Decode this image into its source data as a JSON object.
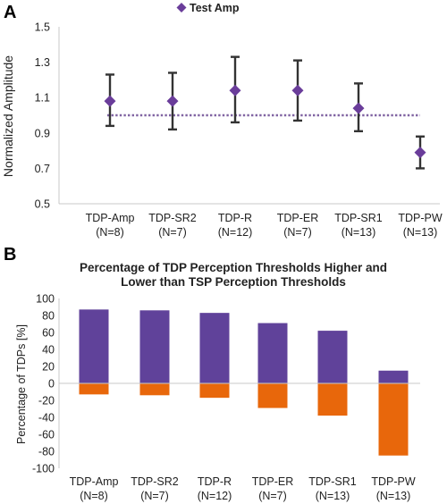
{
  "panels": {
    "a": {
      "letter": "A"
    },
    "b": {
      "letter": "B"
    }
  },
  "chart_data": [
    {
      "type": "scatter",
      "panel": "A",
      "title": "",
      "xlabel": "",
      "ylabel": "Normalized Amplitude",
      "ylim": [
        0.5,
        1.5
      ],
      "yticks": [
        "0.5",
        "0.7",
        "0.9",
        "1.1",
        "1.3",
        "1.5"
      ],
      "grid": false,
      "legend": {
        "entries": [
          "Test Amp"
        ],
        "placement": "top"
      },
      "categories": [
        {
          "name": "TDP-Amp",
          "n": "(N=8)"
        },
        {
          "name": "TDP-SR2",
          "n": "(N=7)"
        },
        {
          "name": "TDP-R",
          "n": "(N=12)"
        },
        {
          "name": "TDP-ER",
          "n": "(N=7)"
        },
        {
          "name": "TDP-SR1",
          "n": "(N=13)"
        },
        {
          "name": "TDP-PW",
          "n": "(N=13)"
        }
      ],
      "series": [
        {
          "name": "Test Amp",
          "color": "#6a3d9a",
          "values": [
            1.08,
            1.08,
            1.14,
            1.14,
            1.04,
            0.79
          ],
          "error_low": [
            0.94,
            0.92,
            0.96,
            0.97,
            0.91,
            0.7
          ],
          "error_high": [
            1.23,
            1.24,
            1.33,
            1.31,
            1.18,
            0.88
          ]
        }
      ],
      "reference_line": {
        "value": 1.0,
        "style": "dotted",
        "color": "#8064a2"
      }
    },
    {
      "type": "bar",
      "panel": "B",
      "title_lines": [
        "Percentage of TDP Perception Thresholds Higher and",
        "Lower than TSP Perception Thresholds"
      ],
      "xlabel": "",
      "ylabel": "Percentage of TDPs [%]",
      "ylim": [
        -100,
        100
      ],
      "yticks": [
        "100",
        "80",
        "60",
        "40",
        "20",
        "0",
        "-20",
        "-40",
        "-60",
        "-80",
        "-100"
      ],
      "grid": false,
      "categories": [
        {
          "name": "TDP-Amp",
          "n": "(N=8)"
        },
        {
          "name": "TDP-SR2",
          "n": "(N=7)"
        },
        {
          "name": "TDP-R",
          "n": "(N=12)"
        },
        {
          "name": "TDP-ER",
          "n": "(N=7)"
        },
        {
          "name": "TDP-SR1",
          "n": "(N=13)"
        },
        {
          "name": "TDP-PW",
          "n": "(N=13)"
        }
      ],
      "series": [
        {
          "color": "#60429a",
          "values": [
            87,
            86,
            83,
            71,
            62,
            15
          ]
        },
        {
          "color": "#e8670b",
          "values": [
            -13,
            -14,
            -17,
            -29,
            -38,
            -85
          ]
        }
      ]
    }
  ]
}
